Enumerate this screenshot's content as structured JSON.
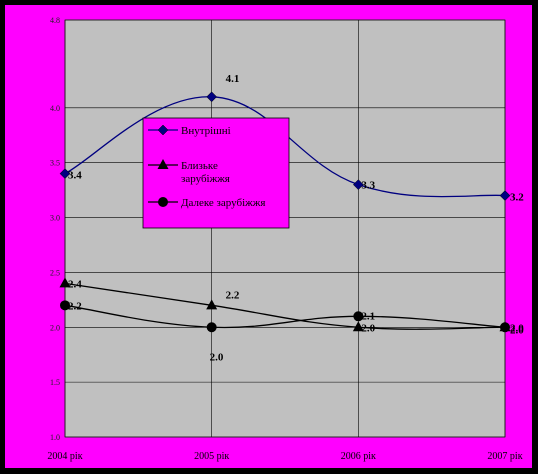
{
  "chart_data": {
    "type": "line",
    "categories": [
      "2004 рік",
      "2005 рік",
      "2006 рік",
      "2007 рік"
    ],
    "ylim": [
      1.0,
      4.8
    ],
    "yticks": [
      "1.0",
      "1.5",
      "2.0",
      "2.5",
      "3.0",
      "3.5",
      "4.0",
      "4.8"
    ],
    "ylabel": "",
    "grid": true,
    "legend_position": "center-left",
    "series": [
      {
        "name": "Внутрішні",
        "values": [
          3.4,
          4.1,
          3.3,
          3.2
        ],
        "labels": [
          "3.4",
          "4.1",
          "3.3",
          "3.2"
        ],
        "color": "#000080",
        "marker": "diamond"
      },
      {
        "name": "Близьке зарубіжжя",
        "values": [
          2.4,
          2.2,
          2.0,
          2.0
        ],
        "labels": [
          "2.4",
          "2.2",
          "2.0",
          "2.0"
        ],
        "color": "#000000",
        "marker": "triangle"
      },
      {
        "name": "Далеке зарубіжжя",
        "values": [
          2.2,
          2.0,
          2.1,
          2.0
        ],
        "labels": [
          "2.2",
          "2.0",
          "2.1",
          "2.0"
        ],
        "color": "#000000",
        "marker": "circle"
      }
    ],
    "colors": {
      "plot_bg": "#c0c0c0",
      "frame_bg": "#ff00ff",
      "outer_bg": "#000000",
      "legend_bg": "#ff00ff"
    }
  }
}
